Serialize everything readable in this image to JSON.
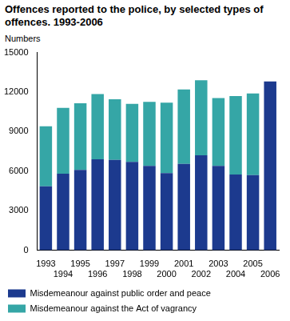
{
  "chart_data": {
    "type": "bar",
    "title": "Offences reported to the police, by selected types of offences. 1993-2006",
    "ylabel": "Numbers",
    "categories": [
      "1993",
      "1994",
      "1995",
      "1996",
      "1997",
      "1998",
      "1999",
      "2000",
      "2001",
      "2002",
      "2003",
      "2004",
      "2005",
      "2006"
    ],
    "series": [
      {
        "name": "Misdemeanour against public order and peace",
        "color": "#1c3a8e",
        "values": [
          4850,
          5800,
          6100,
          6900,
          6850,
          6700,
          6400,
          5850,
          6550,
          7200,
          6400,
          5750,
          5700,
          12800
        ]
      },
      {
        "name": "Misdemeanour against the Act of vagrancy",
        "color": "#35a6a6",
        "values": [
          4550,
          5000,
          5050,
          4950,
          4600,
          4400,
          4850,
          5350,
          5650,
          5700,
          5150,
          5950,
          6200,
          null
        ]
      }
    ],
    "stacked": true,
    "ylim": [
      0,
      15000
    ],
    "yticks": [
      0,
      3000,
      6000,
      9000,
      12000,
      15000
    ],
    "grid": false,
    "legend": "bottom"
  }
}
